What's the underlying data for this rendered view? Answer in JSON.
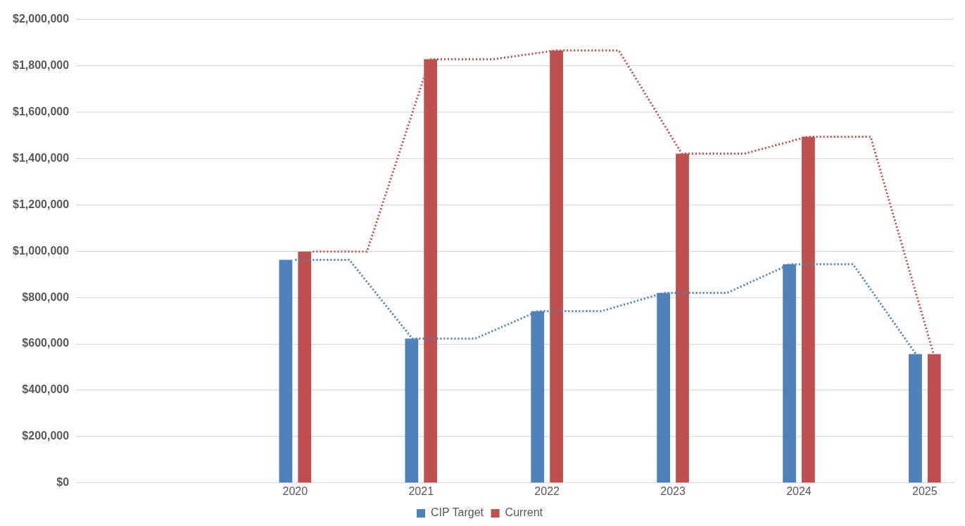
{
  "chart_data": {
    "type": "bar",
    "x": [
      2020,
      2021,
      2022,
      2023,
      2024,
      2025
    ],
    "series": [
      {
        "name": "CIP Target",
        "color": "#4f81bd",
        "values": [
          963000,
          623000,
          741000,
          820000,
          944000,
          556000
        ]
      },
      {
        "name": "Current",
        "color": "#c0504d",
        "values": [
          998000,
          1828000,
          1866000,
          1421000,
          1494000,
          556000
        ]
      },
      {
        "type": "line",
        "color": "#4f81bd",
        "line_style": "dotted",
        "marker": "none",
        "x": [
          2020.0,
          2020.43,
          2020.93,
          2021.43,
          2021.93,
          2022.43,
          2022.93,
          2023.43,
          2023.93,
          2024.43,
          2024.93
        ],
        "values": [
          963000,
          963000,
          623000,
          623000,
          741000,
          741000,
          820000,
          820000,
          944000,
          944000,
          556000
        ]
      },
      {
        "type": "line",
        "color": "#c0504d",
        "line_style": "dotted",
        "marker": "none",
        "x": [
          2020.14,
          2020.57,
          2021.07,
          2021.57,
          2022.07,
          2022.57,
          2023.07,
          2023.57,
          2024.07,
          2024.57,
          2025.07
        ],
        "values": [
          998000,
          998000,
          1828000,
          1828000,
          1866000,
          1866000,
          1421000,
          1421000,
          1494000,
          1494000,
          556000
        ]
      }
    ],
    "xlim": [
      2018.26,
      2025.23
    ],
    "xticks": [
      2020,
      2021,
      2022,
      2023,
      2024,
      2025
    ],
    "ylim": [
      0,
      2000000
    ],
    "yticks": [
      {
        "value": 0,
        "label": "$0"
      },
      {
        "value": 200000,
        "label": "$200,000"
      },
      {
        "value": 400000,
        "label": "$400,000"
      },
      {
        "value": 600000,
        "label": "$600,000"
      },
      {
        "value": 800000,
        "label": "$800,000"
      },
      {
        "value": 1000000,
        "label": "$1,000,000"
      },
      {
        "value": 1200000,
        "label": "$1,200,000"
      },
      {
        "value": 1400000,
        "label": "$1,400,000"
      },
      {
        "value": 1600000,
        "label": "$1,600,000"
      },
      {
        "value": 1800000,
        "label": "$1,800,000"
      },
      {
        "value": 2000000,
        "label": "$2,000,000"
      }
    ],
    "grid": "y",
    "legend": "bottom"
  }
}
